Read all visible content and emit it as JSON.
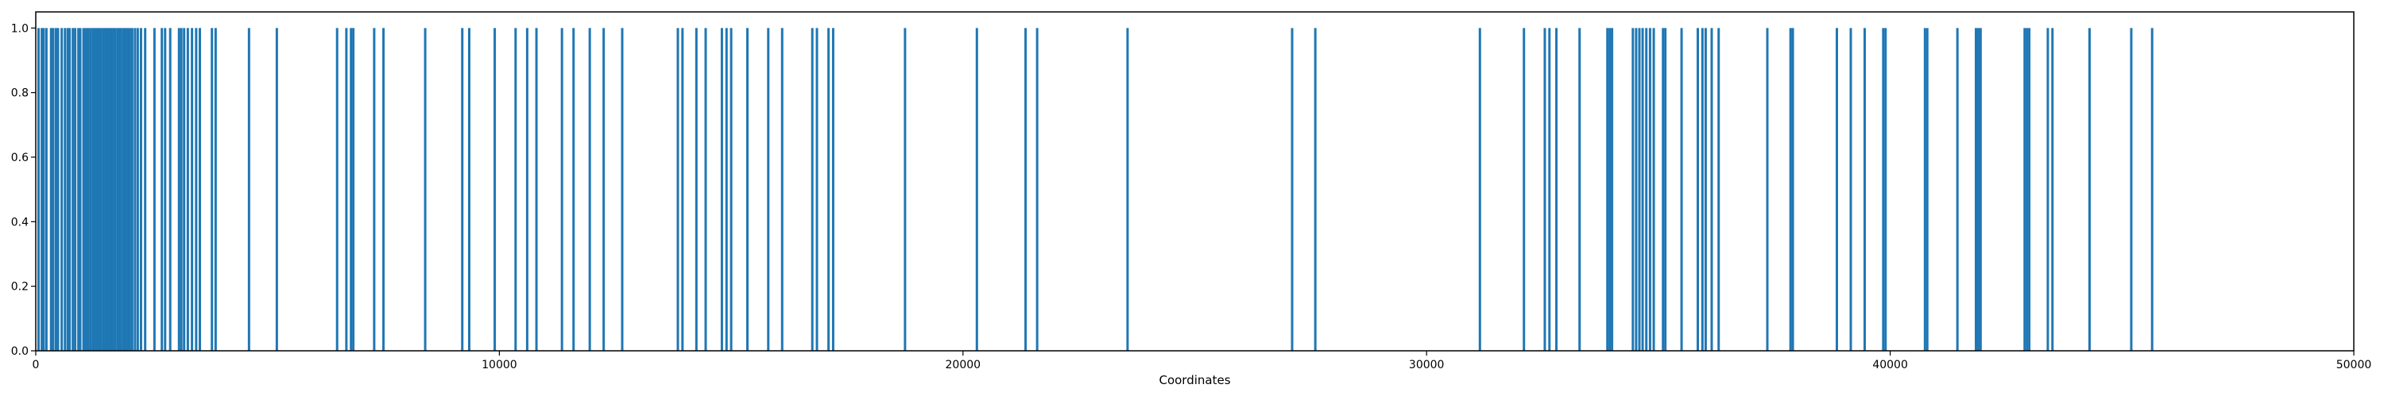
{
  "chart_data": {
    "type": "bar",
    "title": "",
    "xlabel": "Coordinates",
    "ylabel": "",
    "xlim": [
      0,
      50000
    ],
    "ylim": [
      0.0,
      1.05
    ],
    "grid": false,
    "x_ticks": [
      0,
      10000,
      20000,
      30000,
      40000,
      50000
    ],
    "y_ticks": [
      0.0,
      0.2,
      0.4,
      0.6,
      0.8,
      1.0
    ],
    "x_tick_labels": [
      "0",
      "10000",
      "20000",
      "30000",
      "40000",
      "50000"
    ],
    "y_tick_labels": [
      "0.0",
      "0.2",
      "0.4",
      "0.6",
      "0.8",
      "1.0"
    ],
    "bar_color": "#1f77b4",
    "bar_value": 1.0,
    "x": [
      60,
      130,
      170,
      230,
      330,
      370,
      430,
      480,
      560,
      630,
      690,
      730,
      800,
      850,
      920,
      960,
      1030,
      1080,
      1130,
      1180,
      1230,
      1270,
      1320,
      1360,
      1400,
      1450,
      1500,
      1540,
      1580,
      1620,
      1670,
      1710,
      1760,
      1800,
      1840,
      1890,
      1930,
      1980,
      2030,
      2080,
      2140,
      2200,
      2270,
      2360,
      2560,
      2720,
      2790,
      2900,
      3090,
      3140,
      3200,
      3280,
      3370,
      3460,
      3540,
      3800,
      3880,
      4600,
      5200,
      6500,
      6700,
      6800,
      6850,
      7300,
      7500,
      8400,
      9200,
      9350,
      9900,
      10350,
      10600,
      10800,
      11350,
      11600,
      11950,
      12250,
      12650,
      13850,
      13950,
      14250,
      14450,
      14800,
      14900,
      15000,
      15350,
      15800,
      16100,
      16750,
      16850,
      17100,
      17200,
      18750,
      20300,
      21350,
      21600,
      23550,
      27100,
      27600,
      31150,
      32100,
      32550,
      32650,
      32800,
      33300,
      33900,
      33950,
      34000,
      34450,
      34520,
      34590,
      34660,
      34740,
      34820,
      34900,
      35100,
      35150,
      35500,
      35850,
      35950,
      36020,
      36150,
      36300,
      37350,
      37850,
      37900,
      38850,
      39150,
      39450,
      39850,
      39900,
      40750,
      40800,
      41450,
      41850,
      41900,
      41950,
      42900,
      42950,
      43000,
      43400,
      43500,
      44300,
      45200,
      45650
    ]
  }
}
